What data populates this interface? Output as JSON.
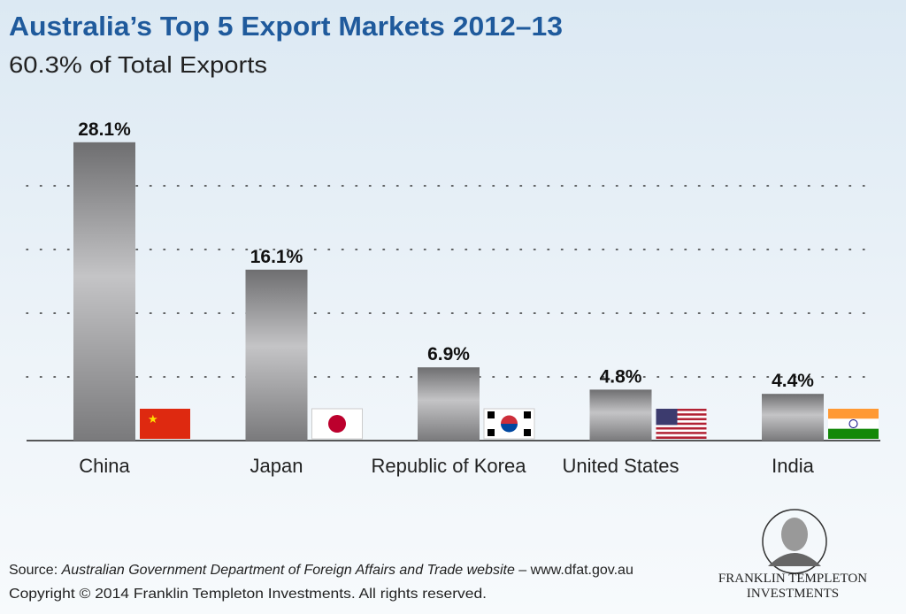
{
  "chart_data": {
    "type": "bar",
    "title": "Australia’s Top 5 Export Markets 2012–13",
    "subtitle": "60.3% of Total Exports",
    "categories": [
      "China",
      "Japan",
      "Republic of Korea",
      "United States",
      "India"
    ],
    "values": [
      28.1,
      16.1,
      6.9,
      4.8,
      4.4
    ],
    "value_labels": [
      "28.1%",
      "16.1%",
      "6.9%",
      "4.8%",
      "4.4%"
    ],
    "ylim": [
      0,
      30
    ],
    "yticks": [
      6,
      12,
      18,
      24
    ],
    "grid": true,
    "source_label": "Source:",
    "source": "Australian Government Department of Foreign Affairs and Trade website",
    "source_site": "– www.dfat.gov.au",
    "copyright": "Copyright © 2014 Franklin Templeton Investments. All rights reserved.",
    "logo": [
      "FRANKLIN TEMPLETON",
      "INVESTMENTS"
    ]
  }
}
